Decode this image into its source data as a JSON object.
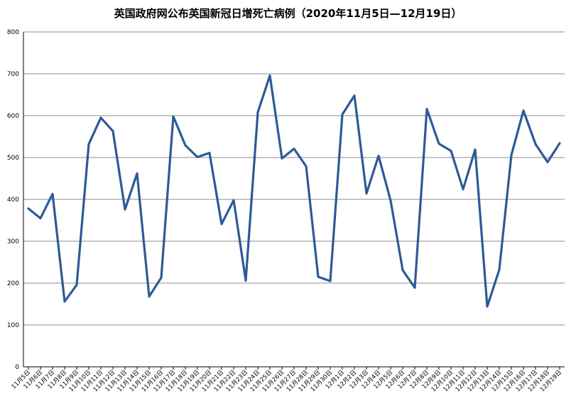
{
  "chart_data": {
    "type": "line",
    "title": "英国政府网公布英国新冠日增死亡病例（2020年11月5日—12月19日）",
    "xlabel": "",
    "ylabel": "",
    "ylim": [
      0,
      800
    ],
    "yticks": [
      0,
      100,
      200,
      300,
      400,
      500,
      600,
      700,
      800
    ],
    "grid": true,
    "legend": "none",
    "categories": [
      "11月5日",
      "11月6日",
      "11月7日",
      "11月8日",
      "11月9日",
      "11月10日",
      "11月11日",
      "11月12日",
      "11月13日",
      "11月14日",
      "11月15日",
      "11月16日",
      "11月17日",
      "11月18日",
      "11月19日",
      "11月20日",
      "11月21日",
      "11月22日",
      "11月23日",
      "11月24日",
      "11月25日",
      "11月26日",
      "11月27日",
      "11月28日",
      "11月29日",
      "11月30日",
      "12月1日",
      "12月2日",
      "12月3日",
      "12月4日",
      "12月5日",
      "12月6日",
      "12月7日",
      "12月8日",
      "12月9日",
      "12月10日",
      "12月11日",
      "12月12日",
      "12月13日",
      "12月14日",
      "12月15日",
      "12月16日",
      "12月17日",
      "12月18日",
      "12月19日"
    ],
    "series": [
      {
        "values": [
          378,
          355,
          413,
          156,
          196,
          532,
          595,
          563,
          376,
          462,
          168,
          213,
          598,
          529,
          501,
          511,
          341,
          398,
          206,
          608,
          696,
          498,
          521,
          479,
          215,
          205,
          603,
          648,
          414,
          504,
          397,
          231,
          189,
          616,
          533,
          516,
          424,
          519,
          144,
          232,
          506,
          612,
          532,
          489,
          534
        ],
        "color": "#2e5a97"
      }
    ]
  }
}
